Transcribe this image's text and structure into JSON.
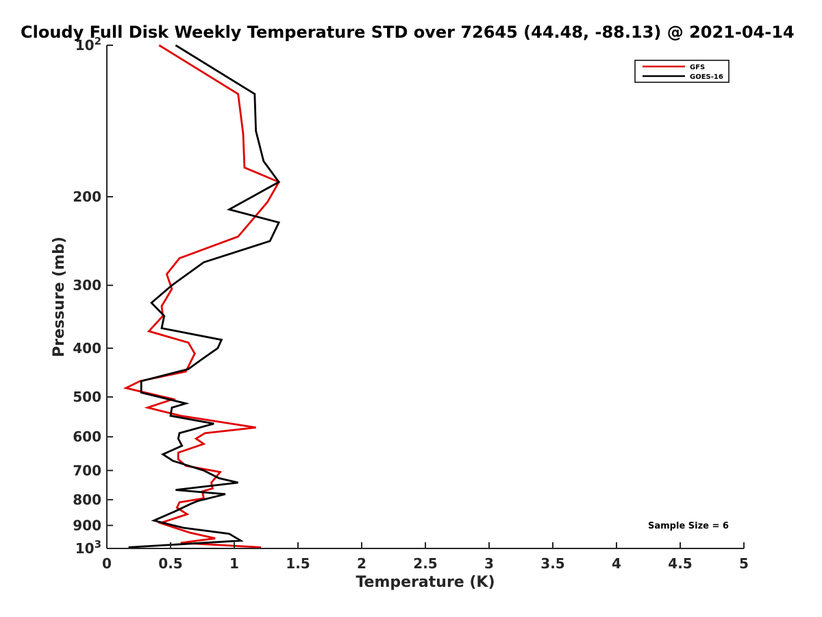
{
  "chart_data": {
    "type": "line",
    "title": "Cloudy Full Disk Weekly Temperature STD over 72645 (44.48, -88.13) @ 2021-04-14",
    "xlabel": "Temperature (K)",
    "ylabel": "Pressure (mb)",
    "xlim": [
      0,
      5
    ],
    "ylim": [
      100,
      1000
    ],
    "y_scale": "log",
    "y_reversed": true,
    "grid": false,
    "legend_position": "top-right",
    "x_ticks": [
      {
        "value": 0,
        "label": "0"
      },
      {
        "value": 0.5,
        "label": "0.5"
      },
      {
        "value": 1,
        "label": "1"
      },
      {
        "value": 1.5,
        "label": "1.5"
      },
      {
        "value": 2,
        "label": "2"
      },
      {
        "value": 2.5,
        "label": "2.5"
      },
      {
        "value": 3,
        "label": "3"
      },
      {
        "value": 3.5,
        "label": "3.5"
      },
      {
        "value": 4,
        "label": "4"
      },
      {
        "value": 4.5,
        "label": "4.5"
      },
      {
        "value": 5,
        "label": "5"
      }
    ],
    "y_ticks": [
      {
        "value": 100,
        "base": "10",
        "exp": "2"
      },
      {
        "value": 200,
        "label": "200"
      },
      {
        "value": 300,
        "label": "300"
      },
      {
        "value": 400,
        "label": "400"
      },
      {
        "value": 500,
        "label": "500"
      },
      {
        "value": 600,
        "label": "600"
      },
      {
        "value": 700,
        "label": "700"
      },
      {
        "value": 800,
        "label": "800"
      },
      {
        "value": 900,
        "label": "900"
      },
      {
        "value": 1000,
        "base": "10",
        "exp": "3"
      }
    ],
    "series": [
      {
        "name": "GFS",
        "color": "#e00000",
        "points": [
          [
            0.41,
            100
          ],
          [
            1.03,
            125
          ],
          [
            1.07,
            150
          ],
          [
            1.08,
            175
          ],
          [
            1.35,
            187
          ],
          [
            1.26,
            205
          ],
          [
            1.03,
            240
          ],
          [
            0.57,
            265
          ],
          [
            0.47,
            285
          ],
          [
            0.51,
            305
          ],
          [
            0.43,
            330
          ],
          [
            0.44,
            345
          ],
          [
            0.33,
            370
          ],
          [
            0.64,
            390
          ],
          [
            0.69,
            410
          ],
          [
            0.62,
            445
          ],
          [
            0.26,
            465
          ],
          [
            0.15,
            480
          ],
          [
            0.52,
            505
          ],
          [
            0.32,
            525
          ],
          [
            0.58,
            545
          ],
          [
            1.17,
            575
          ],
          [
            0.77,
            590
          ],
          [
            0.7,
            605
          ],
          [
            0.76,
            620
          ],
          [
            0.56,
            645
          ],
          [
            0.56,
            665
          ],
          [
            0.62,
            685
          ],
          [
            0.89,
            705
          ],
          [
            0.82,
            740
          ],
          [
            0.83,
            760
          ],
          [
            0.75,
            770
          ],
          [
            0.76,
            795
          ],
          [
            0.57,
            810
          ],
          [
            0.55,
            830
          ],
          [
            0.63,
            855
          ],
          [
            0.42,
            890
          ],
          [
            0.65,
            930
          ],
          [
            0.85,
            955
          ],
          [
            0.58,
            975
          ],
          [
            1.21,
            995
          ]
        ]
      },
      {
        "name": "GOES-16",
        "color": "#000000",
        "points": [
          [
            0.54,
            100
          ],
          [
            1.16,
            125
          ],
          [
            1.17,
            148
          ],
          [
            1.23,
            170
          ],
          [
            1.35,
            187
          ],
          [
            0.96,
            212
          ],
          [
            1.35,
            225
          ],
          [
            1.28,
            245
          ],
          [
            0.76,
            270
          ],
          [
            0.51,
            300
          ],
          [
            0.35,
            325
          ],
          [
            0.45,
            345
          ],
          [
            0.43,
            365
          ],
          [
            0.9,
            385
          ],
          [
            0.87,
            400
          ],
          [
            0.75,
            420
          ],
          [
            0.64,
            440
          ],
          [
            0.27,
            465
          ],
          [
            0.27,
            490
          ],
          [
            0.62,
            515
          ],
          [
            0.51,
            525
          ],
          [
            0.5,
            545
          ],
          [
            0.84,
            565
          ],
          [
            0.57,
            590
          ],
          [
            0.56,
            605
          ],
          [
            0.59,
            625
          ],
          [
            0.44,
            650
          ],
          [
            0.52,
            670
          ],
          [
            0.76,
            700
          ],
          [
            0.88,
            725
          ],
          [
            1.03,
            740
          ],
          [
            0.54,
            765
          ],
          [
            0.93,
            780
          ],
          [
            0.71,
            805
          ],
          [
            0.66,
            815
          ],
          [
            0.53,
            845
          ],
          [
            0.37,
            880
          ],
          [
            0.6,
            910
          ],
          [
            0.96,
            935
          ],
          [
            1.05,
            965
          ],
          [
            0.17,
            995
          ]
        ]
      }
    ],
    "annotations": [
      {
        "text": "Sample Size = 6"
      }
    ]
  }
}
